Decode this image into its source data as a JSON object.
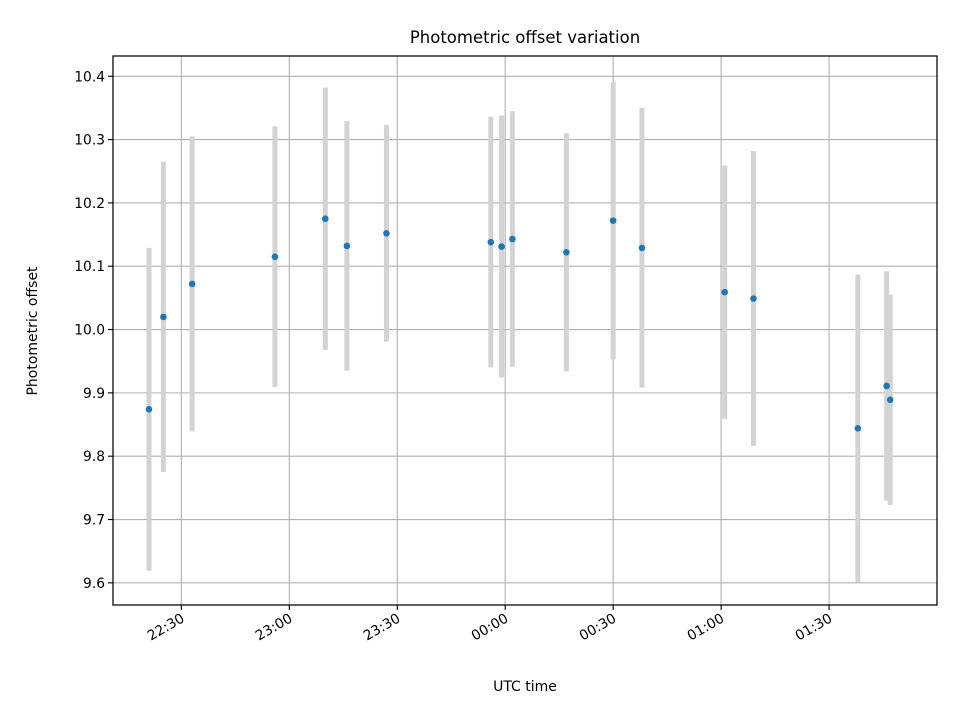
{
  "chart_data": {
    "type": "scatter",
    "title": "Photometric offset variation",
    "xlabel": "UTC time",
    "ylabel": "Photometric offset",
    "x_unit": "UTC time of day",
    "xlim": [
      "22:11",
      "02:00"
    ],
    "ylim": [
      9.565,
      10.432
    ],
    "x_ticks": [
      "22:30",
      "23:00",
      "23:30",
      "00:00",
      "00:30",
      "01:00",
      "01:30"
    ],
    "y_ticks": [
      9.6,
      9.7,
      9.8,
      9.9,
      10.0,
      10.1,
      10.2,
      10.3,
      10.4
    ],
    "grid": true,
    "error_bar_color": "#d3d3d3",
    "marker_color": "#1f77b4",
    "points": [
      {
        "x": "22:21",
        "y": 9.874,
        "err": 0.255
      },
      {
        "x": "22:25",
        "y": 10.02,
        "err": 0.245
      },
      {
        "x": "22:33",
        "y": 10.072,
        "err": 0.233
      },
      {
        "x": "22:56",
        "y": 10.115,
        "err": 0.206
      },
      {
        "x": "23:10",
        "y": 10.175,
        "err": 0.207
      },
      {
        "x": "23:16",
        "y": 10.132,
        "err": 0.197
      },
      {
        "x": "23:27",
        "y": 10.152,
        "err": 0.171
      },
      {
        "x": "23:56",
        "y": 10.138,
        "err": 0.198
      },
      {
        "x": "23:59",
        "y": 10.131,
        "err": 0.207
      },
      {
        "x": "00:02",
        "y": 10.143,
        "err": 0.202
      },
      {
        "x": "00:17",
        "y": 10.122,
        "err": 0.188
      },
      {
        "x": "00:30",
        "y": 10.172,
        "err": 0.219
      },
      {
        "x": "00:38",
        "y": 10.129,
        "err": 0.221
      },
      {
        "x": "01:01",
        "y": 10.059,
        "err": 0.2
      },
      {
        "x": "01:09",
        "y": 10.049,
        "err": 0.233
      },
      {
        "x": "01:38",
        "y": 9.844,
        "err": 0.243
      },
      {
        "x": "01:46",
        "y": 9.911,
        "err": 0.181
      },
      {
        "x": "01:47",
        "y": 9.889,
        "err": 0.166
      }
    ]
  }
}
